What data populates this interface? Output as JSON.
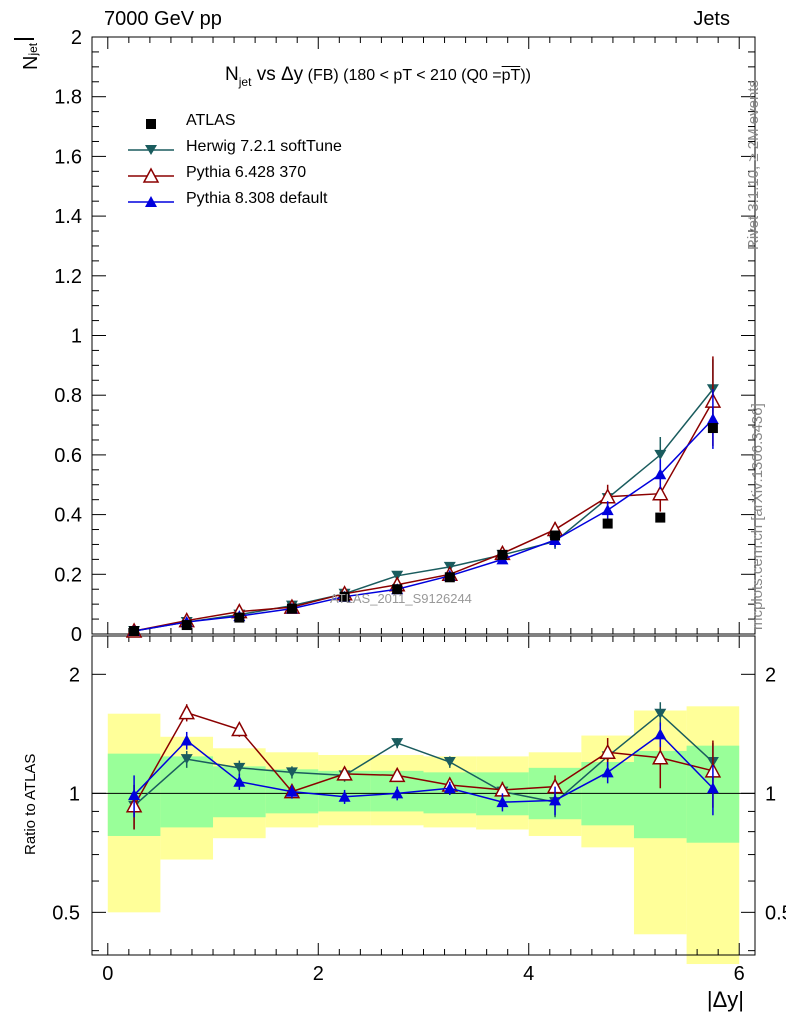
{
  "header": {
    "left": "7000 GeV pp",
    "right": "Jets"
  },
  "side_labels": {
    "rivet": "Rivet 3.1.10, ≥ 2M events",
    "mcplots": "mcplots.cern.ch [arXiv:1306.3436]"
  },
  "watermark": "ATLAS_2011_S9126244",
  "title": {
    "main": "N",
    "sub": "jet",
    "rest": " vs Δy",
    "fb": " (FB)",
    "range": " (180 < pT < 210 (Q0 =",
    "pt": "pT",
    "close": "))"
  },
  "axes": {
    "ylabel_top_bar": "N",
    "ylabel_top_sub": "jet",
    "ylabel_bottom": "Ratio to ATLAS",
    "xlabel": "|Δy|"
  },
  "colors": {
    "atlas": "#000000",
    "herwig": "#1a5c5e",
    "pythia6": "#8b0000",
    "pythia8": "#0000dd",
    "band_yellow": "#ffff99",
    "band_green": "#99ff99"
  },
  "chart_data": [
    {
      "type": "line",
      "panel": "main",
      "xlim": [
        -0.15,
        6.15
      ],
      "ylim": [
        0,
        2
      ],
      "yticks": [
        "0",
        "0.2",
        "0.4",
        "0.6",
        "0.8",
        "1",
        "1.2",
        "1.4",
        "1.6",
        "1.8",
        "2"
      ],
      "legend_placement": "top-left",
      "x": [
        0.25,
        0.75,
        1.25,
        1.75,
        2.25,
        2.75,
        3.25,
        3.75,
        4.25,
        4.75,
        5.25,
        5.75
      ],
      "series": [
        {
          "name": "ATLAS",
          "marker": "square",
          "values": [
            0.01,
            0.03,
            0.055,
            0.085,
            0.125,
            0.15,
            0.19,
            0.265,
            0.33,
            0.37,
            0.39,
            0.69
          ],
          "errors": [
            0.0,
            0.0,
            0.0,
            0.0,
            0.0,
            0.0,
            0.0,
            0.0,
            0.0,
            0.0,
            0.0,
            0.0
          ]
        },
        {
          "name": "Herwig 7.2.1 softTune",
          "marker": "triangle-down",
          "values": [
            0.01,
            0.04,
            0.065,
            0.095,
            0.135,
            0.195,
            0.225,
            0.265,
            0.31,
            0.455,
            0.6,
            0.82
          ],
          "errors": [
            0.003,
            0.006,
            0.008,
            0.01,
            0.01,
            0.012,
            0.012,
            0.015,
            0.025,
            0.03,
            0.06,
            0.1
          ]
        },
        {
          "name": "Pythia 6.428 370",
          "marker": "triangle-open",
          "values": [
            0.01,
            0.045,
            0.075,
            0.09,
            0.135,
            0.165,
            0.2,
            0.27,
            0.35,
            0.46,
            0.47,
            0.78
          ],
          "errors": [
            0.003,
            0.006,
            0.008,
            0.01,
            0.01,
            0.012,
            0.012,
            0.015,
            0.025,
            0.04,
            0.06,
            0.15
          ]
        },
        {
          "name": "Pythia 8.308 default",
          "marker": "triangle-up",
          "values": [
            0.01,
            0.04,
            0.06,
            0.085,
            0.125,
            0.15,
            0.195,
            0.25,
            0.315,
            0.415,
            0.535,
            0.72
          ],
          "errors": [
            0.003,
            0.006,
            0.008,
            0.01,
            0.01,
            0.012,
            0.012,
            0.015,
            0.025,
            0.03,
            0.05,
            0.1
          ]
        }
      ]
    },
    {
      "type": "line",
      "panel": "ratio",
      "yscale": "log",
      "xlim": [
        -0.15,
        6.15
      ],
      "ylim": [
        0.39,
        2.5
      ],
      "yticks": [
        "0.5",
        "1",
        "2"
      ],
      "xticks": [
        "0",
        "2",
        "4",
        "6"
      ],
      "x": [
        0.25,
        0.75,
        1.25,
        1.75,
        2.25,
        2.75,
        3.25,
        3.75,
        4.25,
        4.75,
        5.25,
        5.75
      ],
      "bands": {
        "edges": [
          0,
          0.5,
          1.0,
          1.5,
          2.0,
          2.5,
          3.0,
          3.5,
          4.0,
          4.5,
          5.0,
          5.5,
          6.0
        ],
        "yellow_lo": [
          0.5,
          0.68,
          0.77,
          0.82,
          0.83,
          0.83,
          0.82,
          0.81,
          0.78,
          0.73,
          0.44,
          0.37
        ],
        "yellow_hi": [
          1.59,
          1.39,
          1.3,
          1.27,
          1.25,
          1.25,
          1.24,
          1.24,
          1.27,
          1.4,
          1.62,
          1.66
        ],
        "green_lo": [
          0.78,
          0.82,
          0.87,
          0.89,
          0.9,
          0.9,
          0.89,
          0.88,
          0.86,
          0.83,
          0.77,
          0.75
        ],
        "green_hi": [
          1.26,
          1.24,
          1.17,
          1.15,
          1.14,
          1.14,
          1.13,
          1.13,
          1.16,
          1.2,
          1.28,
          1.32
        ]
      },
      "series": [
        {
          "name": "Herwig 7.2.1 softTune",
          "values": [
            0.93,
            1.22,
            1.16,
            1.13,
            1.11,
            1.34,
            1.2,
            1.01,
            0.95,
            1.24,
            1.59,
            1.2
          ],
          "errors": [
            0.12,
            0.06,
            0.05,
            0.04,
            0.04,
            0.04,
            0.04,
            0.05,
            0.08,
            0.07,
            0.11,
            0.14
          ]
        },
        {
          "name": "Pythia 6.428 370",
          "values": [
            0.93,
            1.6,
            1.45,
            1.01,
            1.12,
            1.11,
            1.05,
            1.02,
            1.04,
            1.27,
            1.23,
            1.14
          ],
          "errors": [
            0.12,
            0.08,
            0.06,
            0.04,
            0.04,
            0.04,
            0.04,
            0.05,
            0.07,
            0.11,
            0.2,
            0.22
          ]
        },
        {
          "name": "Pythia 8.308 default",
          "values": [
            0.99,
            1.36,
            1.07,
            1.01,
            0.98,
            1.0,
            1.03,
            0.95,
            0.96,
            1.13,
            1.41,
            1.03
          ],
          "errors": [
            0.12,
            0.07,
            0.05,
            0.04,
            0.04,
            0.04,
            0.04,
            0.05,
            0.08,
            0.07,
            0.1,
            0.15
          ]
        }
      ]
    }
  ]
}
